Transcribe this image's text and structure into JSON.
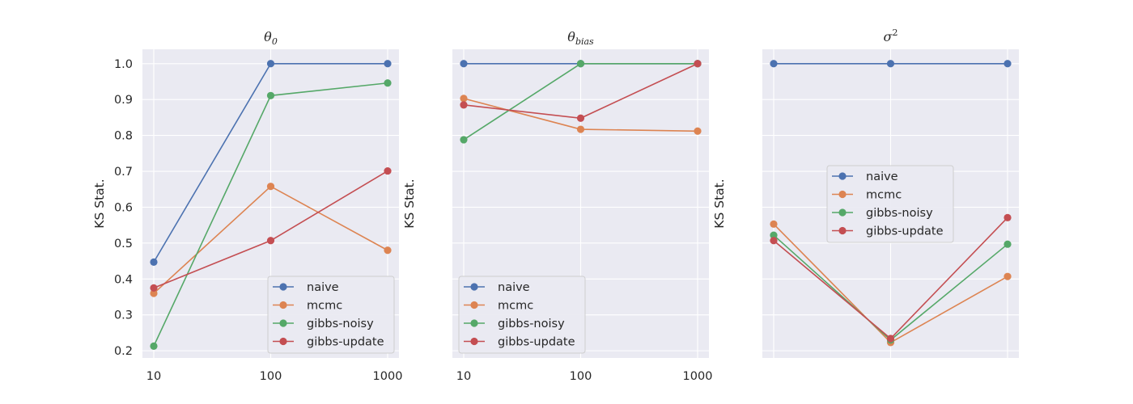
{
  "chart_data": [
    {
      "type": "line",
      "title": "θ0",
      "title_base": "θ",
      "title_sub": "0",
      "xlabel": "",
      "ylabel": "KS Stat.",
      "x_scale": "log",
      "x": [
        10,
        100,
        1000
      ],
      "x_tick_labels": [
        "10",
        "100",
        "1000"
      ],
      "ylim": [
        0.18,
        1.04
      ],
      "y_ticks": [
        0.2,
        0.3,
        0.4,
        0.5,
        0.6,
        0.7,
        0.8,
        0.9,
        1.0
      ],
      "y_tick_labels": [
        "0.2",
        "0.3",
        "0.4",
        "0.5",
        "0.6",
        "0.7",
        "0.8",
        "0.9",
        "1.0"
      ],
      "grid": true,
      "legend": "lower-right",
      "series": [
        {
          "name": "naive",
          "color": "#4c72b0",
          "values": [
            0.447,
            1.0,
            1.0
          ]
        },
        {
          "name": "mcmc",
          "color": "#dd8452",
          "values": [
            0.36,
            0.658,
            0.48
          ]
        },
        {
          "name": "gibbs-noisy",
          "color": "#55a868",
          "values": [
            0.213,
            0.911,
            0.946
          ]
        },
        {
          "name": "gibbs-update",
          "color": "#c44e52",
          "values": [
            0.375,
            0.507,
            0.701
          ]
        }
      ]
    },
    {
      "type": "line",
      "title": "θbias",
      "title_base": "θ",
      "title_sub": "bias",
      "xlabel": "",
      "ylabel": "KS Stat.",
      "x_scale": "log",
      "x": [
        10,
        100,
        1000
      ],
      "x_tick_labels": [
        "10",
        "100",
        "1000"
      ],
      "ylim": [
        0.18,
        1.04
      ],
      "y_ticks": [
        0.2,
        0.3,
        0.4,
        0.5,
        0.6,
        0.7,
        0.8,
        0.9,
        1.0
      ],
      "y_tick_labels": [],
      "grid": true,
      "legend": "lower-left",
      "series": [
        {
          "name": "naive",
          "color": "#4c72b0",
          "values": [
            1.0,
            1.0,
            1.0
          ]
        },
        {
          "name": "mcmc",
          "color": "#dd8452",
          "values": [
            0.903,
            0.817,
            0.812
          ]
        },
        {
          "name": "gibbs-noisy",
          "color": "#55a868",
          "values": [
            0.788,
            1.0,
            1.0
          ]
        },
        {
          "name": "gibbs-update",
          "color": "#c44e52",
          "values": [
            0.885,
            0.848,
            1.0
          ]
        }
      ]
    },
    {
      "type": "line",
      "title": "σ2",
      "title_base": "σ",
      "title_sup": "2",
      "xlabel": "",
      "ylabel": "KS Stat.",
      "x_scale": "log",
      "x": [
        10,
        100,
        1000
      ],
      "x_tick_labels": [],
      "ylim": [
        0.18,
        1.04
      ],
      "y_ticks": [
        0.2,
        0.3,
        0.4,
        0.5,
        0.6,
        0.7,
        0.8,
        0.9,
        1.0
      ],
      "y_tick_labels": [],
      "grid": true,
      "legend": "center",
      "series": [
        {
          "name": "naive",
          "color": "#4c72b0",
          "values": [
            1.0,
            1.0,
            1.0
          ]
        },
        {
          "name": "mcmc",
          "color": "#dd8452",
          "values": [
            0.553,
            0.223,
            0.407
          ]
        },
        {
          "name": "gibbs-noisy",
          "color": "#55a868",
          "values": [
            0.522,
            0.23,
            0.497
          ]
        },
        {
          "name": "gibbs-update",
          "color": "#c44e52",
          "values": [
            0.507,
            0.234,
            0.571
          ]
        }
      ]
    }
  ]
}
